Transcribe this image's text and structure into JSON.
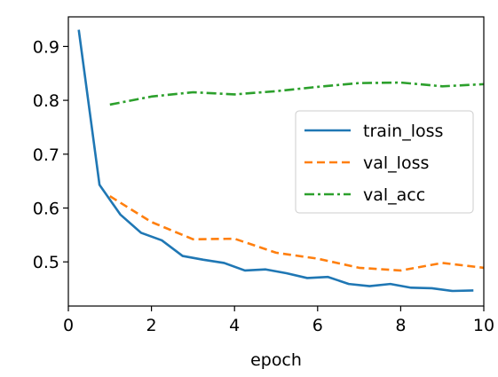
{
  "chart_data": {
    "type": "line",
    "xlabel": "epoch",
    "ylabel": "",
    "xlim": [
      0,
      10
    ],
    "ylim": [
      0.418,
      0.955
    ],
    "xticks": [
      "0",
      "2",
      "4",
      "6",
      "8",
      "10"
    ],
    "yticks": [
      "0.5",
      "0.6",
      "0.7",
      "0.8",
      "0.9"
    ],
    "legend_position": "right",
    "grid": false,
    "series": [
      {
        "name": "train_loss",
        "color": "#1f77b4",
        "style": "solid",
        "x": [
          0.25,
          0.75,
          1.25,
          1.75,
          2.25,
          2.75,
          3.25,
          3.75,
          4.25,
          4.75,
          5.25,
          5.75,
          6.25,
          6.75,
          7.25,
          7.75,
          8.25,
          8.75,
          9.25,
          9.75
        ],
        "y": [
          0.931,
          0.643,
          0.588,
          0.554,
          0.54,
          0.511,
          0.504,
          0.498,
          0.484,
          0.486,
          0.479,
          0.47,
          0.472,
          0.459,
          0.455,
          0.459,
          0.452,
          0.451,
          0.446,
          0.447
        ]
      },
      {
        "name": "val_loss",
        "color": "#ff7f0e",
        "style": "dashed",
        "x": [
          1,
          2,
          3,
          4,
          5,
          6,
          7,
          8,
          9,
          10
        ],
        "y": [
          0.622,
          0.574,
          0.542,
          0.543,
          0.517,
          0.506,
          0.489,
          0.484,
          0.498,
          0.489
        ]
      },
      {
        "name": "val_acc",
        "color": "#2ca02c",
        "style": "dashdot",
        "x": [
          1,
          2,
          3,
          4,
          5,
          6,
          7,
          8,
          9,
          10
        ],
        "y": [
          0.792,
          0.807,
          0.815,
          0.811,
          0.817,
          0.825,
          0.832,
          0.833,
          0.826,
          0.83
        ]
      }
    ]
  }
}
